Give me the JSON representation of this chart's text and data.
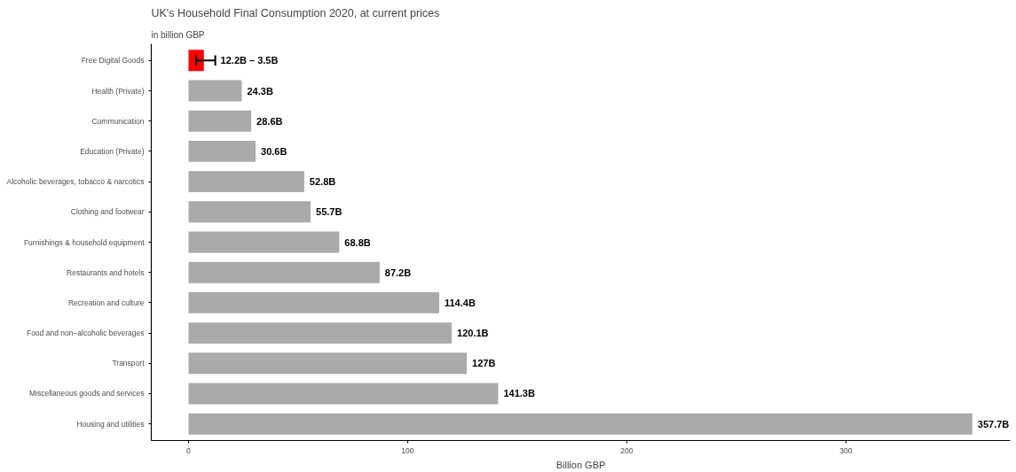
{
  "chart_data": {
    "type": "bar",
    "orientation": "horizontal",
    "title": "UK's Household Final Consumption 2020, at current prices",
    "subtitle": "in billion GBP",
    "xlabel": "Billion GBP",
    "categories": [
      "Free Digital Goods",
      "Health (Private)",
      "Communication",
      "Education (Private)",
      "Alcoholic beverages, tobacco & narcotics",
      "Clothing and footwear",
      "Furnishings & household equipment",
      "Restaurants and hotels",
      "Recreation and culture",
      "Food and non−alcoholic beverages",
      "Transport",
      "Miscellaneous goods and services",
      "Housing and utilities"
    ],
    "values": [
      7,
      24.3,
      28.6,
      30.6,
      52.8,
      55.7,
      68.8,
      87.2,
      114.4,
      120.1,
      127,
      141.3,
      357.7
    ],
    "colors": [
      "#ff0000",
      "#aaaaaa",
      "#aaaaaa",
      "#aaaaaa",
      "#aaaaaa",
      "#aaaaaa",
      "#aaaaaa",
      "#aaaaaa",
      "#aaaaaa",
      "#aaaaaa",
      "#aaaaaa",
      "#aaaaaa",
      "#aaaaaa"
    ],
    "errors": [
      [
        3.5,
        12.2
      ],
      null,
      null,
      null,
      null,
      null,
      null,
      null,
      null,
      null,
      null,
      null,
      null
    ],
    "value_labels": [
      null,
      "24.3B",
      "28.6B",
      "30.6B",
      "52.8B",
      "55.7B",
      "68.8B",
      "87.2B",
      "114.4B",
      "120.1B",
      "127B",
      "141.3B",
      "357.7B"
    ],
    "xlim": [
      -17,
      375
    ],
    "xticks": [
      0,
      100,
      200,
      300
    ],
    "grid": false,
    "annotations": [
      {
        "text": "12.2B – 3.5B",
        "x": 12.2,
        "y": "Free Digital Goods"
      }
    ]
  }
}
